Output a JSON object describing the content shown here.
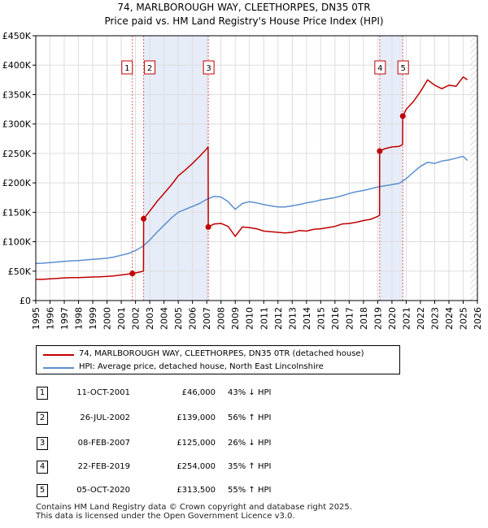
{
  "title": {
    "line1": "74, MARLBOROUGH WAY, CLEETHORPES, DN35 0TR",
    "line2": "Price paid vs. HM Land Registry's House Price Index (HPI)"
  },
  "colors": {
    "price_line": "#c00000",
    "hpi_line": "#5b8fd0",
    "shade": "#e6ecf8",
    "hatch": "#dddddd"
  },
  "chart_data": {
    "type": "line",
    "xlim": [
      1995,
      2026
    ],
    "ylim": [
      0,
      450000
    ],
    "x_ticks": [
      "1995",
      "1996",
      "1997",
      "1998",
      "1999",
      "2000",
      "2001",
      "2002",
      "2003",
      "2004",
      "2005",
      "2006",
      "2007",
      "2008",
      "2009",
      "2010",
      "2011",
      "2012",
      "2013",
      "2014",
      "2015",
      "2016",
      "2017",
      "2018",
      "2019",
      "2020",
      "2021",
      "2022",
      "2023",
      "2024",
      "2025",
      "2026"
    ],
    "y_ticks": [
      {
        "value": 0,
        "label": "£0"
      },
      {
        "value": 50000,
        "label": "£50K"
      },
      {
        "value": 100000,
        "label": "£100K"
      },
      {
        "value": 150000,
        "label": "£150K"
      },
      {
        "value": 200000,
        "label": "£200K"
      },
      {
        "value": 250000,
        "label": "£250K"
      },
      {
        "value": 300000,
        "label": "£300K"
      },
      {
        "value": 350000,
        "label": "£350K"
      },
      {
        "value": 400000,
        "label": "£400K"
      },
      {
        "value": 450000,
        "label": "£450K"
      }
    ],
    "shaded_ranges": [
      [
        2002.57,
        2007.11
      ],
      [
        2019.14,
        2020.76
      ]
    ],
    "hatched_from": 2025.5,
    "series": [
      {
        "name": "74, MARLBOROUGH WAY, CLEETHORPES, DN35 0TR (detached house)",
        "color": "#c00000",
        "x": [
          1995.0,
          1995.5,
          1996.0,
          1996.5,
          1997.0,
          1997.5,
          1998.0,
          1998.5,
          1999.0,
          1999.5,
          2000.0,
          2000.5,
          2001.0,
          2001.5,
          2001.78,
          2002.0,
          2002.3,
          2002.56,
          2002.57,
          2003.0,
          2003.5,
          2004.0,
          2004.5,
          2005.0,
          2005.5,
          2006.0,
          2006.5,
          2007.0,
          2007.1,
          2007.11,
          2007.5,
          2008.0,
          2008.5,
          2009.0,
          2009.5,
          2010.0,
          2010.5,
          2011.0,
          2011.5,
          2012.0,
          2012.5,
          2013.0,
          2013.5,
          2014.0,
          2014.5,
          2015.0,
          2015.5,
          2016.0,
          2016.5,
          2017.0,
          2017.5,
          2018.0,
          2018.5,
          2019.0,
          2019.13,
          2019.14,
          2019.5,
          2020.0,
          2020.5,
          2020.75,
          2020.76,
          2021.0,
          2021.5,
          2022.0,
          2022.5,
          2023.0,
          2023.5,
          2024.0,
          2024.5,
          2025.0,
          2025.3
        ],
        "values": [
          36000,
          36000,
          37000,
          37500,
          38500,
          39000,
          39000,
          39500,
          40000,
          40500,
          41000,
          42000,
          43500,
          45000,
          46000,
          47000,
          48500,
          50000,
          139000,
          152000,
          168000,
          182000,
          196000,
          212000,
          222000,
          233000,
          245000,
          258000,
          261000,
          125000,
          130000,
          131000,
          126000,
          109000,
          125000,
          124000,
          122000,
          118000,
          117000,
          116000,
          115000,
          116000,
          119000,
          118000,
          121000,
          122000,
          124000,
          126000,
          130000,
          131000,
          133000,
          136000,
          138000,
          143000,
          145000,
          254000,
          258000,
          261000,
          262000,
          265000,
          313500,
          325000,
          338000,
          355000,
          375000,
          366000,
          360000,
          366000,
          364000,
          380000,
          375000
        ]
      },
      {
        "name": "HPI: Average price, detached house, North East Lincolnshire",
        "color": "#5b8fd0",
        "x": [
          1995.0,
          1995.5,
          1996.0,
          1996.5,
          1997.0,
          1997.5,
          1998.0,
          1998.5,
          1999.0,
          1999.5,
          2000.0,
          2000.5,
          2001.0,
          2001.5,
          2002.0,
          2002.5,
          2003.0,
          2003.5,
          2004.0,
          2004.5,
          2005.0,
          2005.5,
          2006.0,
          2006.5,
          2007.0,
          2007.5,
          2008.0,
          2008.5,
          2009.0,
          2009.5,
          2010.0,
          2010.5,
          2011.0,
          2011.5,
          2012.0,
          2012.5,
          2013.0,
          2013.5,
          2014.0,
          2014.5,
          2015.0,
          2015.5,
          2016.0,
          2016.5,
          2017.0,
          2017.5,
          2018.0,
          2018.5,
          2019.0,
          2019.5,
          2020.0,
          2020.5,
          2021.0,
          2021.5,
          2022.0,
          2022.5,
          2023.0,
          2023.5,
          2024.0,
          2024.5,
          2025.0,
          2025.3
        ],
        "values": [
          63000,
          63500,
          64500,
          65500,
          66500,
          67500,
          68000,
          69000,
          70000,
          71000,
          72000,
          74000,
          77000,
          80000,
          85000,
          92000,
          103000,
          116000,
          128000,
          140000,
          150000,
          155000,
          160000,
          165000,
          172000,
          177000,
          176000,
          168000,
          155000,
          165000,
          168000,
          166000,
          163000,
          161000,
          159000,
          159000,
          161000,
          163000,
          166000,
          168000,
          171000,
          173000,
          175000,
          178000,
          182000,
          185000,
          187000,
          190000,
          193000,
          195000,
          197000,
          199000,
          207000,
          218000,
          228000,
          235000,
          233000,
          237000,
          239000,
          242000,
          245000,
          238000
        ]
      }
    ],
    "sales": [
      {
        "label": "1",
        "x": 2001.78,
        "value": 46000
      },
      {
        "label": "2",
        "x": 2002.57,
        "value": 139000
      },
      {
        "label": "3",
        "x": 2007.11,
        "value": 125000
      },
      {
        "label": "4",
        "x": 2019.14,
        "value": 254000
      },
      {
        "label": "5",
        "x": 2020.76,
        "value": 313500
      }
    ]
  },
  "legend": {
    "price_label": "74, MARLBOROUGH WAY, CLEETHORPES, DN35 0TR (detached house)",
    "hpi_label": "HPI: Average price, detached house, North East Lincolnshire"
  },
  "transactions": [
    {
      "num": "1",
      "date": "11-OCT-2001",
      "price": "£46,000",
      "hpi": "43% ↓ HPI"
    },
    {
      "num": "2",
      "date": "26-JUL-2002",
      "price": "£139,000",
      "hpi": "56% ↑ HPI"
    },
    {
      "num": "3",
      "date": "08-FEB-2007",
      "price": "£125,000",
      "hpi": "26% ↓ HPI"
    },
    {
      "num": "4",
      "date": "22-FEB-2019",
      "price": "£254,000",
      "hpi": "35% ↑ HPI"
    },
    {
      "num": "5",
      "date": "05-OCT-2020",
      "price": "£313,500",
      "hpi": "55% ↑ HPI"
    }
  ],
  "footer": {
    "line1": "Contains HM Land Registry data © Crown copyright and database right 2025.",
    "line2": "This data is licensed under the Open Government Licence v3.0."
  }
}
